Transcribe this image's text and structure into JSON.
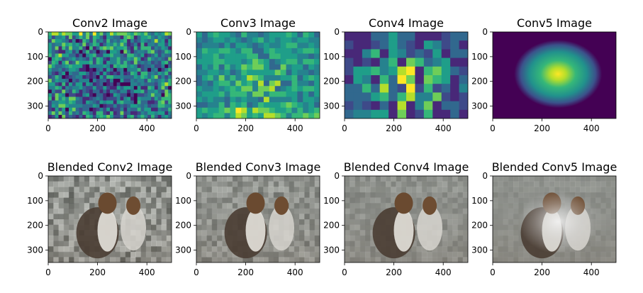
{
  "chart_data": [
    {
      "type": "heatmap",
      "title": "Conv2 Image",
      "colormap": "viridis",
      "xlim": [
        0,
        500
      ],
      "ylim": [
        350,
        0
      ],
      "xticks": [
        0,
        200,
        400
      ],
      "yticks": [
        0,
        100,
        200,
        300
      ]
    },
    {
      "type": "heatmap",
      "title": "Conv3 Image",
      "colormap": "viridis",
      "xlim": [
        0,
        500
      ],
      "ylim": [
        350,
        0
      ],
      "xticks": [
        0,
        200,
        400
      ],
      "yticks": [
        0,
        100,
        200,
        300
      ]
    },
    {
      "type": "heatmap",
      "title": "Conv4 Image",
      "colormap": "viridis",
      "xlim": [
        0,
        500
      ],
      "ylim": [
        350,
        0
      ],
      "xticks": [
        0,
        200,
        400
      ],
      "yticks": [
        0,
        100,
        200,
        300
      ]
    },
    {
      "type": "heatmap",
      "title": "Conv5 Image",
      "colormap": "viridis",
      "xlim": [
        0,
        500
      ],
      "ylim": [
        350,
        0
      ],
      "xticks": [
        0,
        200,
        400
      ],
      "yticks": [
        0,
        100,
        200,
        300
      ]
    },
    {
      "type": "heatmap",
      "title": "Blended Conv2 Image",
      "colormap": "grayscale photo",
      "xlim": [
        0,
        500
      ],
      "ylim": [
        350,
        0
      ],
      "xticks": [
        0,
        200,
        400
      ],
      "yticks": [
        0,
        100,
        200,
        300
      ]
    },
    {
      "type": "heatmap",
      "title": "Blended Conv3 Image",
      "colormap": "grayscale photo",
      "xlim": [
        0,
        500
      ],
      "ylim": [
        350,
        0
      ],
      "xticks": [
        0,
        200,
        400
      ],
      "yticks": [
        0,
        100,
        200,
        300
      ]
    },
    {
      "type": "heatmap",
      "title": "Blended Conv4 Image",
      "colormap": "grayscale photo",
      "xlim": [
        0,
        500
      ],
      "ylim": [
        350,
        0
      ],
      "xticks": [
        0,
        200,
        400
      ],
      "yticks": [
        0,
        100,
        200,
        300
      ]
    },
    {
      "type": "heatmap",
      "title": "Blended Conv5 Image",
      "colormap": "grayscale photo",
      "xlim": [
        0,
        500
      ],
      "ylim": [
        350,
        0
      ],
      "xticks": [
        0,
        200,
        400
      ],
      "yticks": [
        0,
        100,
        200,
        300
      ]
    }
  ]
}
